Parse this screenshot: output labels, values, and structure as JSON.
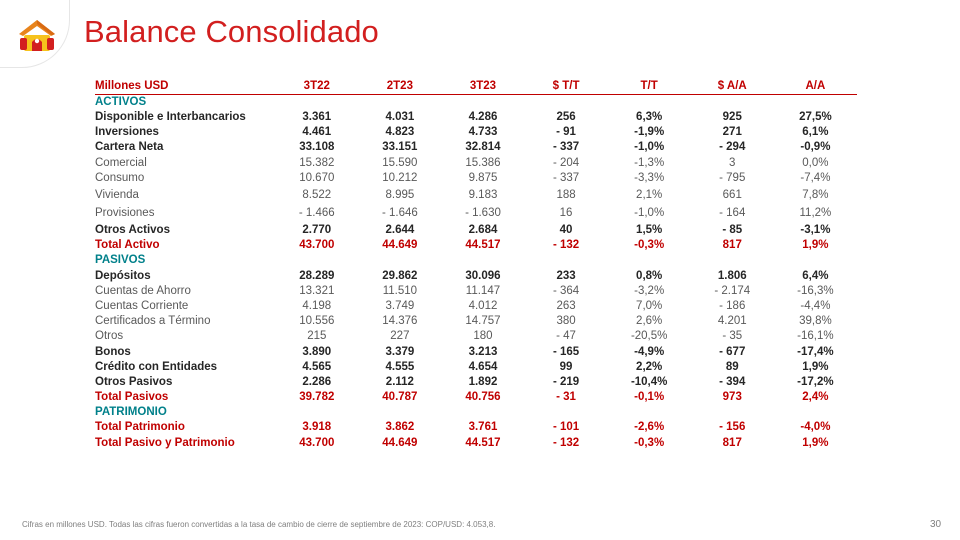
{
  "title": "Balance Consolidado",
  "logo_icon": "house-logo-icon",
  "colors": {
    "accent": "#d21f1f",
    "total": "#c00000",
    "section": "#00808a"
  },
  "table": {
    "headers": [
      "Millones  USD",
      "3T22",
      "2T23",
      "3T23",
      "$ T/T",
      "T/T",
      "$ A/A",
      "A/A"
    ],
    "rows": [
      {
        "style": "section",
        "cells": [
          "ACTIVOS",
          "",
          "",
          "",
          "",
          "",
          "",
          ""
        ]
      },
      {
        "style": "bold",
        "cells": [
          "Disponible e Interbancarios",
          "3.361",
          "4.031",
          "4.286",
          "256",
          "6,3%",
          "925",
          "27,5%"
        ]
      },
      {
        "style": "bold",
        "cells": [
          "Inversiones",
          "4.461",
          "4.823",
          "4.733",
          "- 91",
          "-1,9%",
          "271",
          "6,1%"
        ]
      },
      {
        "style": "bold",
        "cells": [
          "Cartera  Neta",
          "33.108",
          "33.151",
          "32.814",
          "- 337",
          "-1,0%",
          "- 294",
          "-0,9%"
        ]
      },
      {
        "style": "light",
        "cells": [
          "Comercial",
          "15.382",
          "15.590",
          "15.386",
          "- 204",
          "-1,3%",
          "3",
          "0,0%"
        ]
      },
      {
        "style": "light",
        "cells": [
          "Consumo",
          "10.670",
          "10.212",
          "9.875",
          "- 337",
          "-3,3%",
          "- 795",
          "-7,4%"
        ]
      },
      {
        "style": "light tall",
        "cells": [
          "Vivienda",
          "8.522",
          "8.995",
          "9.183",
          "188",
          "2,1%",
          "661",
          "7,8%"
        ]
      },
      {
        "style": "light tall",
        "cells": [
          "Provisiones",
          "- 1.466",
          "- 1.646",
          "- 1.630",
          "16",
          "-1,0%",
          "- 164",
          "11,2%"
        ]
      },
      {
        "style": "bold",
        "cells": [
          "Otros  Activos",
          "2.770",
          "2.644",
          "2.684",
          "40",
          "1,5%",
          "- 85",
          "-3,1%"
        ]
      },
      {
        "style": "total",
        "cells": [
          "Total Activo",
          "43.700",
          "44.649",
          "44.517",
          "- 132",
          "-0,3%",
          "817",
          "1,9%"
        ]
      },
      {
        "style": "section",
        "cells": [
          "PASIVOS",
          "",
          "",
          "",
          "",
          "",
          "",
          ""
        ]
      },
      {
        "style": "bold",
        "cells": [
          "Depósitos",
          "28.289",
          "29.862",
          "30.096",
          "233",
          "0,8%",
          "1.806",
          "6,4%"
        ]
      },
      {
        "style": "light",
        "cells": [
          "Cuentas de Ahorro",
          "13.321",
          "11.510",
          "11.147",
          "- 364",
          "-3,2%",
          "- 2.174",
          "-16,3%"
        ]
      },
      {
        "style": "light",
        "cells": [
          "Cuentas Corriente",
          "4.198",
          "3.749",
          "4.012",
          "263",
          "7,0%",
          "- 186",
          "-4,4%"
        ]
      },
      {
        "style": "light",
        "cells": [
          "Certificados a Término",
          "10.556",
          "14.376",
          "14.757",
          "380",
          "2,6%",
          "4.201",
          "39,8%"
        ]
      },
      {
        "style": "light",
        "cells": [
          "Otros",
          "215",
          "227",
          "180",
          "- 47",
          "-20,5%",
          "- 35",
          "-16,1%"
        ]
      },
      {
        "style": "bold",
        "cells": [
          "Bonos",
          "3.890",
          "3.379",
          "3.213",
          "- 165",
          "-4,9%",
          "- 677",
          "-17,4%"
        ]
      },
      {
        "style": "bold",
        "cells": [
          "Crédito con Entidades",
          "4.565",
          "4.555",
          "4.654",
          "99",
          "2,2%",
          "89",
          "1,9%"
        ]
      },
      {
        "style": "bold",
        "cells": [
          "Otros Pasivos",
          "2.286",
          "2.112",
          "1.892",
          "- 219",
          "-10,4%",
          "- 394",
          "-17,2%"
        ]
      },
      {
        "style": "total",
        "cells": [
          "Total Pasivos",
          "39.782",
          "40.787",
          "40.756",
          "- 31",
          "-0,1%",
          "973",
          "2,4%"
        ]
      },
      {
        "style": "section",
        "cells": [
          "PATRIMONIO",
          "",
          "",
          "",
          "",
          "",
          "",
          ""
        ]
      },
      {
        "style": "total",
        "cells": [
          "Total Patrimonio",
          "3.918",
          "3.862",
          "3.761",
          "- 101",
          "-2,6%",
          "- 156",
          "-4,0%"
        ]
      },
      {
        "style": "total",
        "cells": [
          "Total Pasivo y Patrimonio",
          "43.700",
          "44.649",
          "44.517",
          "- 132",
          "-0,3%",
          "817",
          "1,9%"
        ]
      }
    ]
  },
  "footnote": "Cifras en millones  USD.  Todas  las cifras  fueron convertidas  a la tasa de cambio de cierre de septiembre de 2023:  COP/USD: 4.053,8.",
  "page_number": "30"
}
